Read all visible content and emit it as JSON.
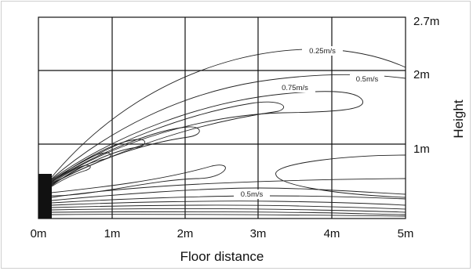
{
  "chart_data": {
    "type": "contour",
    "xlabel": "Floor distance",
    "ylabel": "Height",
    "x_ticks": [
      "0m",
      "1m",
      "2m",
      "3m",
      "4m",
      "5m"
    ],
    "y_ticks": [
      "1m",
      "2m",
      "2.7m"
    ],
    "xlim": [
      0,
      5
    ],
    "ylim": [
      0,
      2.7
    ],
    "grid": true,
    "contour_levels": [
      {
        "label": "0.25m/s",
        "value": 0.25
      },
      {
        "label": "0.5m/s",
        "value": 0.5
      },
      {
        "label": "0.75m/s",
        "value": 0.75
      },
      {
        "label": "0.5m/s",
        "value": 0.5
      }
    ]
  }
}
